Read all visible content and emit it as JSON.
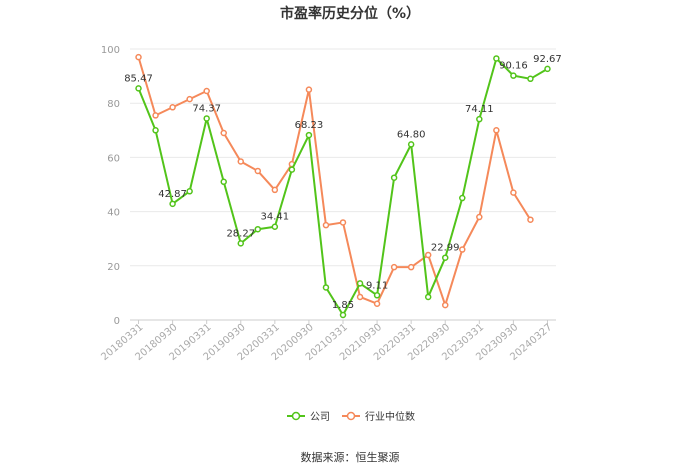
{
  "chart_data": {
    "type": "line",
    "title": "市盈率历史分位（%）",
    "ylim": [
      0,
      100
    ],
    "yticks": [
      "0",
      "20",
      "40",
      "60",
      "80",
      "100"
    ],
    "x_tick_labels": [
      "20180331",
      "20180930",
      "20190331",
      "20190930",
      "20200331",
      "20200930",
      "20210331",
      "20210930",
      "20220331",
      "20220930",
      "20230331",
      "20230930",
      "20240327"
    ],
    "grid": true,
    "legend_position": "bottom",
    "series": [
      {
        "name": "公司",
        "color": "#52c41a",
        "values": [
          85.47,
          70.0,
          42.87,
          47.5,
          74.37,
          51.0,
          28.27,
          33.5,
          34.41,
          55.5,
          68.23,
          12.0,
          1.85,
          13.5,
          9.11,
          52.5,
          64.8,
          8.5,
          22.99,
          45.0,
          74.11,
          96.5,
          90.16,
          89.0,
          92.67
        ],
        "labels": {
          "0": "85.47",
          "2": "42.87",
          "4": "74.37",
          "6": "28.27",
          "8": "34.41",
          "10": "68.23",
          "12": "1.85",
          "14": "9.11",
          "16": "64.80",
          "18": "22.99",
          "20": "74.11",
          "22": "90.16",
          "24": "92.67"
        }
      },
      {
        "name": "行业中位数",
        "color": "#f5895a",
        "values": [
          97.0,
          75.5,
          78.5,
          81.5,
          84.5,
          69.0,
          58.5,
          55.0,
          48.0,
          57.5,
          85.0,
          35.0,
          36.0,
          8.5,
          6.0,
          19.5,
          19.5,
          24.0,
          5.5,
          26.0,
          38.0,
          70.0,
          47.0,
          37.0,
          null
        ]
      }
    ]
  },
  "source": "数据来源：恒生聚源"
}
